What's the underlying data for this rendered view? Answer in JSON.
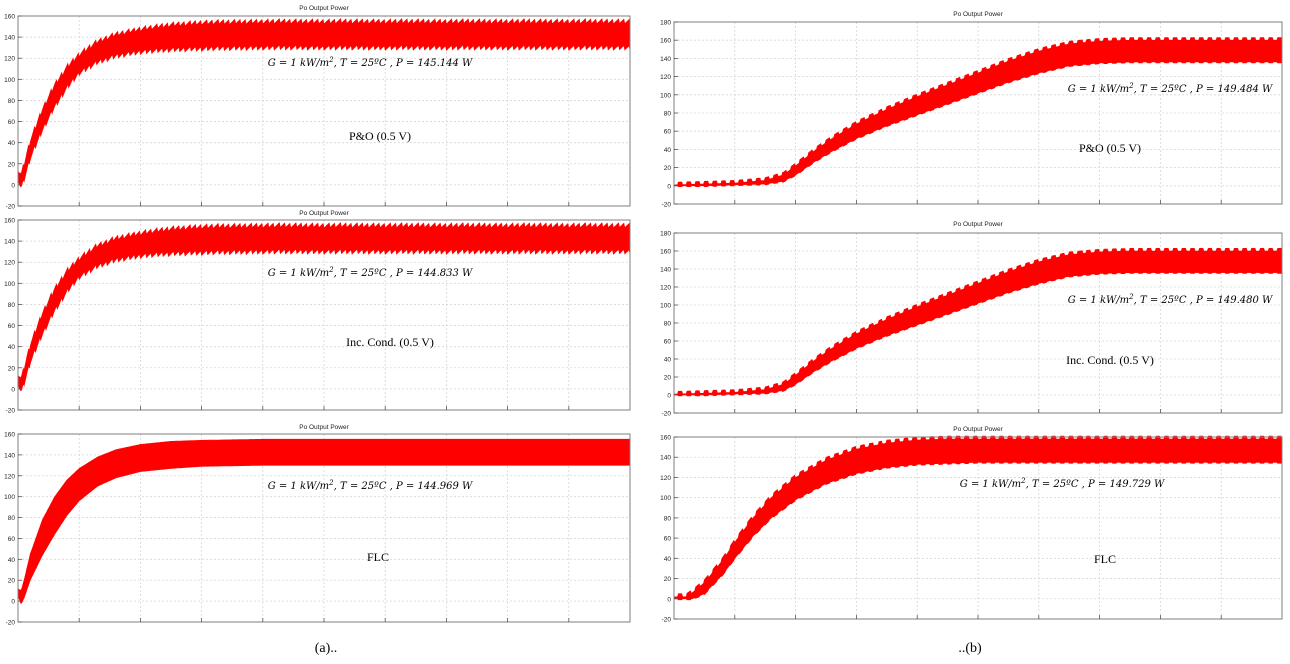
{
  "panels": [
    {
      "caption": "(a).."
    },
    {
      "caption": "..(b)"
    }
  ],
  "chart_data": [
    {
      "type": "area",
      "panel": "(a)",
      "title": "Po Output Power",
      "method_label": "P&O (0.5 V)",
      "annotation": {
        "G": "G = 1 kW/m",
        "sup": "2",
        "rest": ", T = 25ºC , P = 145.144 W"
      },
      "xlim": [
        0,
        1
      ],
      "ylim": [
        -20,
        160
      ],
      "yticks": [
        -20,
        0,
        20,
        40,
        60,
        80,
        100,
        120,
        140,
        160
      ],
      "grid": true,
      "series": [
        {
          "color": "#ff0000",
          "x": [
            0,
            0.005,
            0.01,
            0.02,
            0.04,
            0.06,
            0.08,
            0.1,
            0.13,
            0.16,
            0.2,
            0.25,
            0.3,
            0.4,
            0.5,
            0.7,
            1.0
          ],
          "upper": [
            15,
            10,
            20,
            42,
            72,
            95,
            112,
            124,
            136,
            143,
            148,
            152,
            154,
            155,
            155,
            155,
            155
          ],
          "lower": [
            6,
            -3,
            5,
            25,
            52,
            74,
            92,
            106,
            116,
            122,
            126,
            128,
            129,
            130,
            130,
            130,
            130
          ]
        }
      ],
      "ripple": "sawtooth"
    },
    {
      "type": "area",
      "panel": "(a)",
      "title": "Po Output Power",
      "method_label": "Inc. Cond. (0.5 V)",
      "annotation": {
        "G": "G = 1 kW/m",
        "sup": "2",
        "rest": ", T = 25ºC , P = 144.833 W"
      },
      "xlim": [
        0,
        1
      ],
      "ylim": [
        -20,
        160
      ],
      "yticks": [
        -20,
        0,
        20,
        40,
        60,
        80,
        100,
        120,
        140,
        160
      ],
      "grid": true,
      "series": [
        {
          "color": "#ff0000",
          "x": [
            0,
            0.005,
            0.01,
            0.02,
            0.04,
            0.06,
            0.08,
            0.1,
            0.13,
            0.16,
            0.2,
            0.25,
            0.3,
            0.4,
            0.5,
            0.7,
            1.0
          ],
          "upper": [
            15,
            10,
            20,
            42,
            72,
            95,
            112,
            124,
            136,
            143,
            148,
            152,
            154,
            155,
            155,
            155,
            155
          ],
          "lower": [
            6,
            -3,
            5,
            25,
            52,
            74,
            92,
            106,
            116,
            122,
            126,
            128,
            129,
            130,
            130,
            130,
            130
          ]
        }
      ],
      "ripple": "sawtooth"
    },
    {
      "type": "area",
      "panel": "(a)",
      "title": "Po Output Power",
      "method_label": "FLC",
      "annotation": {
        "G": "G = 1 kW/m",
        "sup": "2",
        "rest": ", T = 25ºC , P = 144.969 W"
      },
      "xlim": [
        0,
        1
      ],
      "ylim": [
        -20,
        160
      ],
      "yticks": [
        -20,
        0,
        20,
        40,
        60,
        80,
        100,
        120,
        140,
        160
      ],
      "grid": true,
      "series": [
        {
          "color": "#ff0000",
          "x": [
            0,
            0.005,
            0.01,
            0.02,
            0.04,
            0.06,
            0.08,
            0.1,
            0.13,
            0.16,
            0.2,
            0.25,
            0.3,
            0.4,
            0.5,
            0.7,
            1.0
          ],
          "upper": [
            12,
            10,
            20,
            45,
            78,
            100,
            116,
            127,
            138,
            145,
            150,
            153,
            154,
            155,
            155,
            155,
            155
          ],
          "lower": [
            5,
            -3,
            3,
            20,
            44,
            64,
            82,
            96,
            110,
            118,
            124,
            127,
            129,
            130,
            130,
            130,
            130
          ]
        }
      ],
      "ripple": "none"
    },
    {
      "type": "area",
      "panel": "(b)",
      "title": "Po Output Power",
      "method_label": "P&O (0.5 V)",
      "annotation": {
        "G": "G = 1 kW/m",
        "sup": "2",
        "rest": ", T = 25ºC , P = 149.484 W"
      },
      "xlim": [
        0,
        1
      ],
      "ylim": [
        -20,
        180
      ],
      "yticks": [
        -20,
        0,
        20,
        40,
        60,
        80,
        100,
        120,
        140,
        160,
        180
      ],
      "grid": true,
      "series": [
        {
          "color": "#ff0000",
          "x": [
            0,
            0.05,
            0.1,
            0.15,
            0.18,
            0.2,
            0.23,
            0.26,
            0.3,
            0.35,
            0.4,
            0.45,
            0.5,
            0.55,
            0.6,
            0.65,
            0.7,
            0.75,
            1.0
          ],
          "upper": [
            1,
            2,
            3,
            6,
            12,
            22,
            38,
            52,
            68,
            84,
            98,
            111,
            124,
            137,
            148,
            156,
            159,
            160,
            160
          ],
          "lower": [
            0,
            0,
            1,
            2,
            5,
            12,
            26,
            38,
            52,
            66,
            78,
            90,
            102,
            114,
            124,
            132,
            135,
            136,
            136
          ]
        }
      ],
      "ripple": "square"
    },
    {
      "type": "area",
      "panel": "(b)",
      "title": "Po Output Power",
      "method_label": "Inc. Cond. (0.5 V)",
      "annotation": {
        "G": "G = 1 kW/m",
        "sup": "2",
        "rest": ", T = 25ºC , P = 149.480 W"
      },
      "xlim": [
        0,
        1
      ],
      "ylim": [
        -20,
        180
      ],
      "yticks": [
        -20,
        0,
        20,
        40,
        60,
        80,
        100,
        120,
        140,
        160,
        180
      ],
      "grid": true,
      "series": [
        {
          "color": "#ff0000",
          "x": [
            0,
            0.05,
            0.1,
            0.15,
            0.18,
            0.2,
            0.23,
            0.26,
            0.3,
            0.35,
            0.4,
            0.45,
            0.5,
            0.55,
            0.6,
            0.65,
            0.7,
            0.75,
            1.0
          ],
          "upper": [
            1,
            2,
            3,
            6,
            12,
            22,
            38,
            52,
            68,
            84,
            98,
            111,
            124,
            137,
            148,
            156,
            159,
            160,
            160
          ],
          "lower": [
            0,
            0,
            1,
            2,
            5,
            12,
            26,
            38,
            52,
            66,
            78,
            90,
            102,
            114,
            124,
            132,
            135,
            136,
            136
          ]
        }
      ],
      "ripple": "square"
    },
    {
      "type": "area",
      "panel": "(b)",
      "title": "Po Output Power",
      "method_label": "FLC",
      "annotation": {
        "G": "G = 1 kW/m",
        "sup": "2",
        "rest": ", T = 25ºC , P = 149.729 W"
      },
      "xlim": [
        0,
        1
      ],
      "ylim": [
        -20,
        160
      ],
      "yticks": [
        -20,
        0,
        20,
        40,
        60,
        80,
        100,
        120,
        140,
        160
      ],
      "grid": true,
      "series": [
        {
          "color": "#ff0000",
          "x": [
            0,
            0.02,
            0.03,
            0.05,
            0.08,
            0.1,
            0.13,
            0.16,
            0.2,
            0.25,
            0.3,
            0.35,
            0.4,
            0.45,
            0.5,
            0.55,
            1.0
          ],
          "upper": [
            2,
            2,
            6,
            16,
            38,
            56,
            80,
            100,
            120,
            137,
            148,
            154,
            157,
            158,
            158,
            158,
            158
          ],
          "lower": [
            0,
            0,
            0,
            5,
            24,
            40,
            62,
            80,
            98,
            114,
            124,
            130,
            133,
            134,
            135,
            135,
            135
          ]
        }
      ],
      "ripple": "square"
    }
  ]
}
